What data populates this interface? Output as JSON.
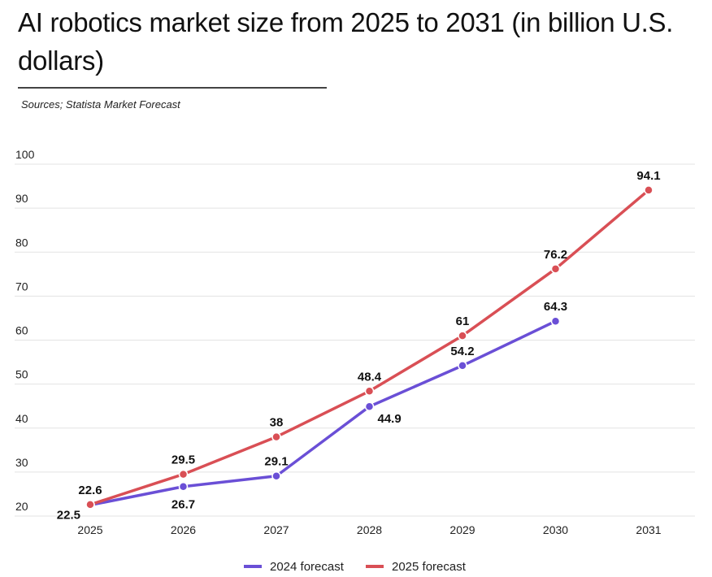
{
  "chart_data": {
    "type": "line",
    "title": "AI robotics market size from 2025 to 2031 (in billion U.S. dollars)",
    "source": "Sources; Statista Market Forecast",
    "x": [
      "2025",
      "2026",
      "2027",
      "2028",
      "2029",
      "2030",
      "2031"
    ],
    "ylim": [
      20,
      100
    ],
    "yticks": [
      20,
      30,
      40,
      50,
      60,
      70,
      80,
      90,
      100
    ],
    "grid": true,
    "legend_position": "bottom",
    "series": [
      {
        "name": "2024 forecast",
        "color": "#6a4fd6",
        "values": [
          22.5,
          26.7,
          29.1,
          44.9,
          54.2,
          64.3,
          null
        ]
      },
      {
        "name": "2025 forecast",
        "color": "#d94f55",
        "values": [
          22.6,
          29.5,
          38,
          48.4,
          61,
          76.2,
          94.1
        ]
      }
    ]
  }
}
